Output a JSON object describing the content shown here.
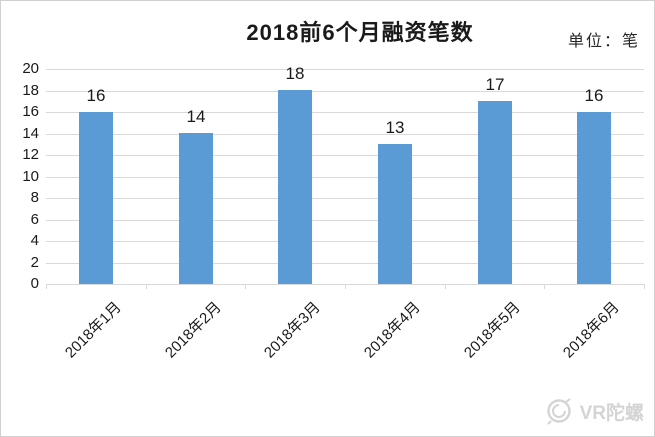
{
  "header": {
    "title": "2018前6个月融资笔数",
    "unit_label": "单位：笔"
  },
  "chart_data": {
    "type": "bar",
    "title": "2018前6个月融资笔数",
    "unit": "笔",
    "categories": [
      "2018年1月",
      "2018年2月",
      "2018年3月",
      "2018年4月",
      "2018年5月",
      "2018年6月"
    ],
    "values": [
      16,
      14,
      18,
      13,
      17,
      16
    ],
    "ylim": [
      0,
      20
    ],
    "ytick_step": 2,
    "grid": true,
    "legend": "none",
    "xlabel": "",
    "ylabel": "",
    "x_tick_rotation_deg": 45,
    "colors": {
      "bar": "#5b9bd5",
      "gridline": "#d9d9d9",
      "text": "#1a1a1a",
      "background": "#ffffff",
      "border": "#d0d0d0"
    }
  },
  "watermark": {
    "text": "VR陀螺",
    "icon": "gyroscope-logo-icon",
    "color": "#d4d4d4"
  }
}
